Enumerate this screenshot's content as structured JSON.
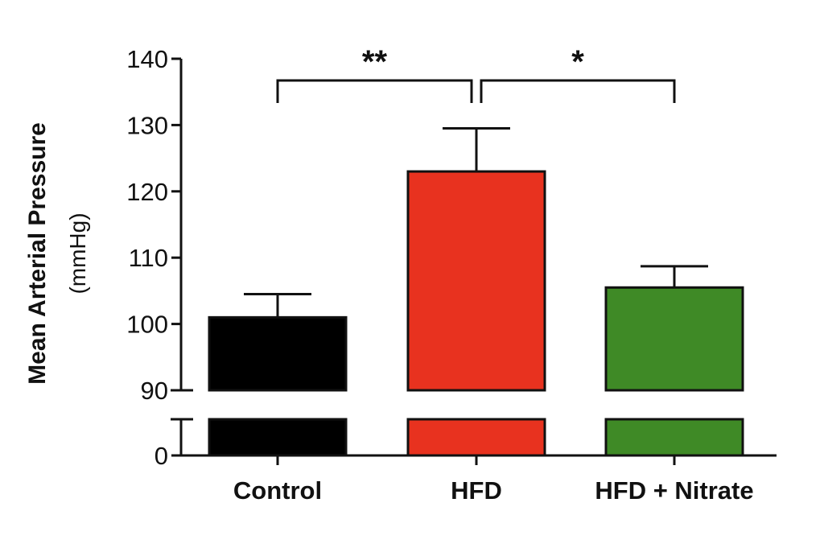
{
  "chart_data": {
    "type": "bar",
    "ylabel": "Mean Arterial Pressure",
    "yunit": "(mmHg)",
    "categories": [
      "Control",
      "HFD",
      "HFD + Nitrate"
    ],
    "values": [
      101,
      123,
      105.5
    ],
    "errors": [
      3.5,
      6.5,
      3.2
    ],
    "colors": [
      "#000000",
      "#e8321f",
      "#3f8a26"
    ],
    "y_axis": {
      "broken": true,
      "lower_ticks": [
        0
      ],
      "upper_ticks": [
        90,
        100,
        110,
        120,
        130,
        140
      ],
      "upper_range": [
        90,
        140
      ]
    },
    "grid": false,
    "significance": [
      {
        "from": 0,
        "to": 1,
        "label": "**"
      },
      {
        "from": 1,
        "to": 2,
        "label": "*"
      }
    ]
  }
}
